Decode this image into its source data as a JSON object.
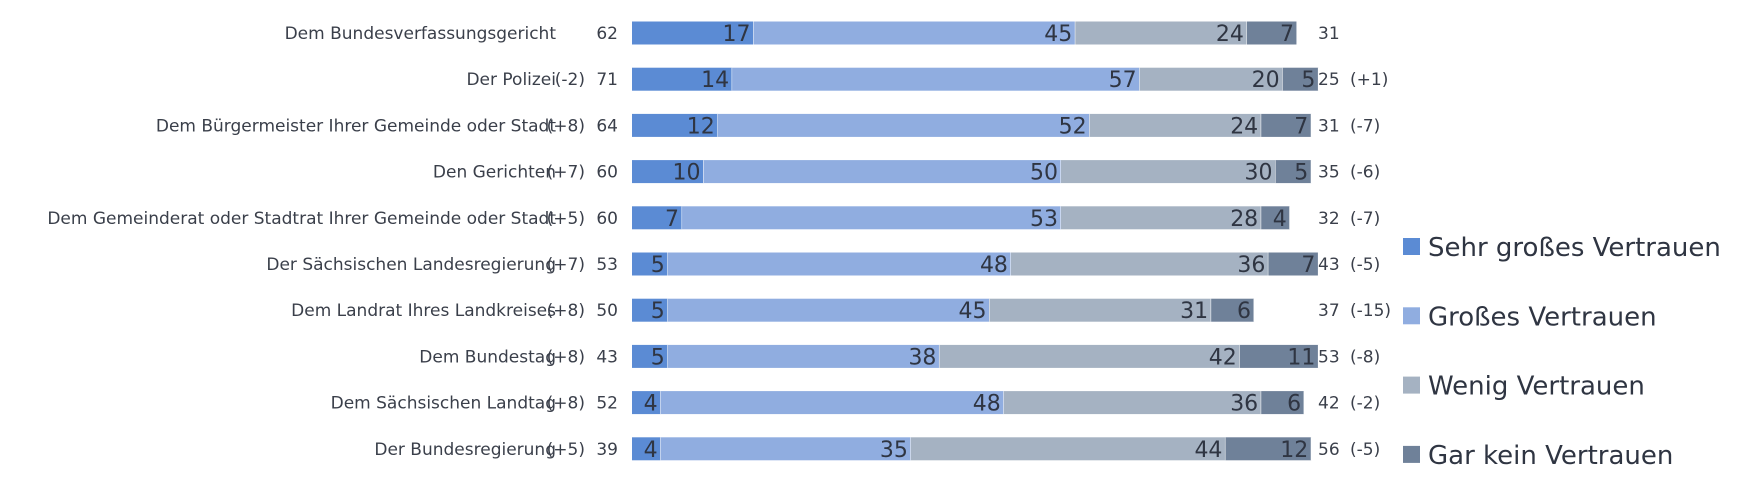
{
  "chart_data": {
    "type": "bar",
    "stacked": true,
    "orientation": "horizontal",
    "categories": [
      "Dem Bundesverfassungsgericht",
      "Der Polizei",
      "Dem Bürgermeister Ihrer Gemeinde oder Stadt",
      "Den Gerichten",
      "Dem Gemeinderat oder Stadtrat Ihrer Gemeinde oder Stadt",
      "Der Sächsischen Landesregierung",
      "Dem Landrat Ihres Landkreises",
      "Dem Bundestag",
      "Dem Sächsischen Landtag",
      "Der Bundesregierung"
    ],
    "series": [
      {
        "name": "Sehr großes Vertrauen",
        "color": "#5b8bd4",
        "values": [
          17,
          14,
          12,
          10,
          7,
          5,
          5,
          5,
          4,
          4
        ]
      },
      {
        "name": "Großes Vertrauen",
        "color": "#90ade0",
        "values": [
          45,
          57,
          52,
          50,
          53,
          48,
          45,
          38,
          48,
          35
        ]
      },
      {
        "name": "Wenig Vertrauen",
        "color": "#a5b2c2",
        "values": [
          24,
          20,
          24,
          30,
          28,
          36,
          31,
          42,
          36,
          44
        ]
      },
      {
        "name": "Gar kein Vertrauen",
        "color": "#6f8199",
        "values": [
          7,
          5,
          7,
          5,
          4,
          7,
          6,
          11,
          6,
          12
        ]
      }
    ],
    "left_change": [
      "",
      "(-2)",
      "(+8)",
      "(+7)",
      "(+5)",
      "(+7)",
      "(+8)",
      "(+8)",
      "(+8)",
      "(+5)"
    ],
    "left_total": [
      "62",
      "71",
      "64",
      "60",
      "60",
      "53",
      "50",
      "43",
      "52",
      "39"
    ],
    "right_total": [
      "31",
      "25",
      "31",
      "35",
      "32",
      "43",
      "37",
      "53",
      "42",
      "56"
    ],
    "right_change": [
      "",
      "(+1)",
      "(-7)",
      "(-6)",
      "(-7)",
      "(-5)",
      "(-15)",
      "(-8)",
      "(-2)",
      "(-5)"
    ],
    "legend_position": "right"
  }
}
